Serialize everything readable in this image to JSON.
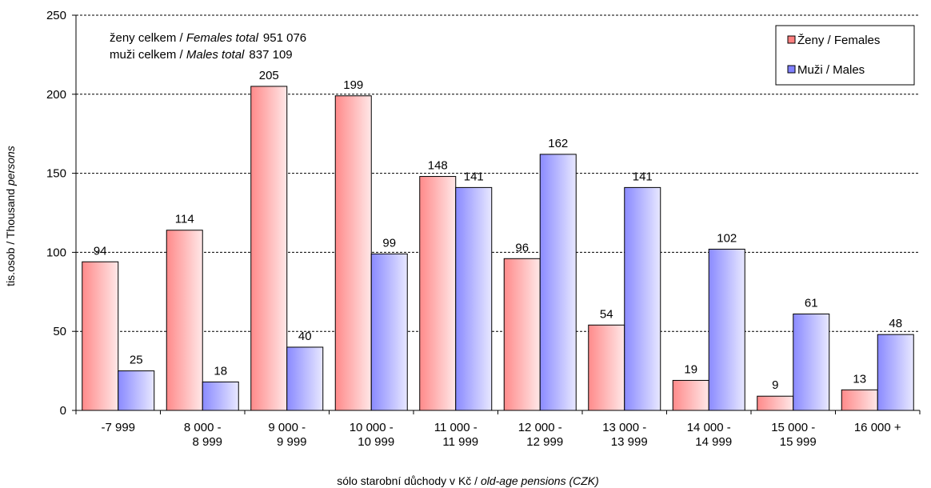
{
  "chart_data": {
    "type": "bar",
    "title": "",
    "categories": [
      [
        "-7 999"
      ],
      [
        "8 000 -",
        "8 999"
      ],
      [
        "9 000 -",
        "9 999"
      ],
      [
        "10 000 -",
        "10 999"
      ],
      [
        "11 000 -",
        "11 999"
      ],
      [
        "12 000 -",
        "12 999"
      ],
      [
        "13 000 -",
        "13 999"
      ],
      [
        "14 000 -",
        "14 999"
      ],
      [
        "15 000 -",
        "15 999"
      ],
      [
        "16 000 +"
      ]
    ],
    "series": [
      {
        "name": "Ženy / Females",
        "values": [
          94,
          114,
          205,
          199,
          148,
          96,
          54,
          19,
          9,
          13
        ],
        "color": "#ff8080"
      },
      {
        "name": "Muži / Males",
        "values": [
          25,
          18,
          40,
          99,
          141,
          162,
          141,
          102,
          61,
          48
        ],
        "color": "#8080ff"
      }
    ],
    "ylim": [
      0,
      250
    ],
    "yticks": [
      0,
      50,
      100,
      150,
      200,
      250
    ],
    "ylabel": {
      "normal": "tis.osob / Thousand ",
      "italic": "persons"
    },
    "xlabel": {
      "normal": "sólo starobní důchody v Kč / ",
      "italic": "old-age pensions (CZK)"
    },
    "grid": "horizontal dashed",
    "legend": "top-right",
    "annotations": [
      {
        "normal_pre": "ženy celkem / ",
        "italic": "Females total",
        "value": "951 076"
      },
      {
        "normal_pre": "muži celkem / ",
        "italic": "Males total",
        "value": "837 109"
      }
    ]
  }
}
